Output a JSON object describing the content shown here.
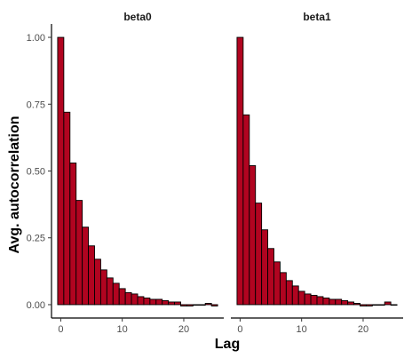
{
  "chart_data": {
    "type": "bar",
    "title": "",
    "xlabel": "Lag",
    "ylabel": "Avg. autocorrelation",
    "ylim": [
      -0.05,
      1.05
    ],
    "xlim": [
      -1.5,
      26.5
    ],
    "x_ticks": [
      0,
      10,
      20
    ],
    "y_ticks": [
      0.0,
      0.25,
      0.5,
      0.75,
      1.0
    ],
    "y_tick_labels": [
      "0.00",
      "0.25",
      "0.50",
      "0.75",
      "1.00"
    ],
    "grid": false,
    "bar_fill": "#b10420",
    "bar_stroke": "#000000",
    "panels": [
      {
        "name": "beta0",
        "lags": [
          0,
          1,
          2,
          3,
          4,
          5,
          6,
          7,
          8,
          9,
          10,
          11,
          12,
          13,
          14,
          15,
          16,
          17,
          18,
          19,
          20,
          21,
          22,
          23,
          24,
          25
        ],
        "values": [
          1.0,
          0.72,
          0.53,
          0.39,
          0.29,
          0.22,
          0.17,
          0.13,
          0.1,
          0.08,
          0.06,
          0.045,
          0.04,
          0.03,
          0.025,
          0.02,
          0.02,
          0.015,
          0.01,
          0.01,
          -0.005,
          -0.005,
          0.0,
          0.0,
          0.005,
          -0.005
        ]
      },
      {
        "name": "beta1",
        "lags": [
          0,
          1,
          2,
          3,
          4,
          5,
          6,
          7,
          8,
          9,
          10,
          11,
          12,
          13,
          14,
          15,
          16,
          17,
          18,
          19,
          20,
          21,
          22,
          23,
          24,
          25
        ],
        "values": [
          1.0,
          0.71,
          0.52,
          0.38,
          0.28,
          0.21,
          0.16,
          0.12,
          0.09,
          0.07,
          0.05,
          0.04,
          0.035,
          0.03,
          0.025,
          0.02,
          0.02,
          0.015,
          0.01,
          0.005,
          -0.005,
          -0.005,
          0.0,
          0.0,
          0.01,
          0.0
        ]
      }
    ]
  }
}
